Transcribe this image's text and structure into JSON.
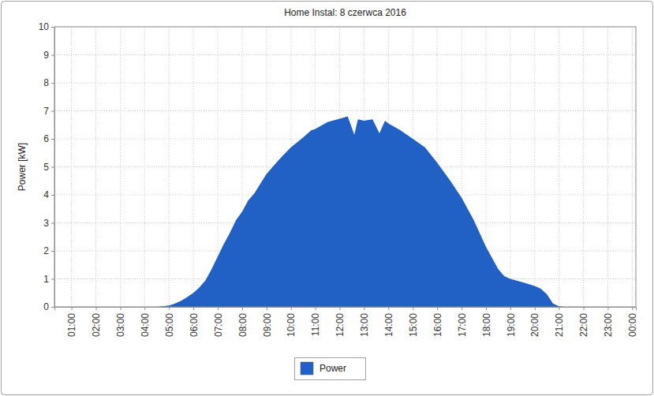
{
  "chart_data": {
    "type": "area",
    "title": "Home Instal: 8 czerwca 2016",
    "y_label": "Power [kW]",
    "x": [
      0.3,
      4.5,
      4.75,
      5.0,
      5.25,
      5.5,
      5.75,
      6.0,
      6.25,
      6.5,
      6.75,
      7.0,
      7.25,
      7.5,
      7.75,
      8.0,
      8.25,
      8.5,
      8.75,
      9.0,
      9.5,
      10.0,
      10.5,
      10.83,
      11.0,
      11.5,
      12.0,
      12.33,
      12.6,
      12.75,
      13.0,
      13.35,
      13.63,
      13.86,
      14.0,
      14.5,
      15.0,
      15.5,
      16.0,
      16.5,
      17.0,
      17.5,
      18.0,
      18.5,
      18.75,
      19.0,
      19.5,
      20.0,
      20.25,
      20.5,
      20.75,
      21.0,
      21.25,
      24.15
    ],
    "series": [
      {
        "name": "Power",
        "color": "#2160c4",
        "values": [
          0,
          0,
          0.02,
          0.05,
          0.12,
          0.22,
          0.35,
          0.5,
          0.7,
          0.95,
          1.35,
          1.8,
          2.25,
          2.65,
          3.1,
          3.4,
          3.8,
          4.05,
          4.4,
          4.75,
          5.25,
          5.7,
          6.05,
          6.3,
          6.35,
          6.6,
          6.72,
          6.8,
          6.15,
          6.7,
          6.65,
          6.7,
          6.2,
          6.65,
          6.55,
          6.3,
          6.0,
          5.7,
          5.15,
          4.55,
          3.9,
          3.1,
          2.15,
          1.35,
          1.1,
          1.0,
          0.88,
          0.75,
          0.65,
          0.45,
          0.12,
          0.02,
          0,
          0
        ]
      }
    ],
    "xlim": [
      0.3,
      24.15
    ],
    "xticks": [
      {
        "value": 1,
        "label": "01:00"
      },
      {
        "value": 2,
        "label": "02:00"
      },
      {
        "value": 3,
        "label": "03:00"
      },
      {
        "value": 4,
        "label": "04:00"
      },
      {
        "value": 5,
        "label": "05:00"
      },
      {
        "value": 6,
        "label": "06:00"
      },
      {
        "value": 7,
        "label": "07:00"
      },
      {
        "value": 8,
        "label": "08:00"
      },
      {
        "value": 9,
        "label": "09:00"
      },
      {
        "value": 10,
        "label": "10:00"
      },
      {
        "value": 11,
        "label": "11:00"
      },
      {
        "value": 12,
        "label": "12:00"
      },
      {
        "value": 13,
        "label": "13:00"
      },
      {
        "value": 14,
        "label": "14:00"
      },
      {
        "value": 15,
        "label": "15:00"
      },
      {
        "value": 16,
        "label": "16:00"
      },
      {
        "value": 17,
        "label": "17:00"
      },
      {
        "value": 18,
        "label": "18:00"
      },
      {
        "value": 19,
        "label": "19:00"
      },
      {
        "value": 20,
        "label": "20:00"
      },
      {
        "value": 21,
        "label": "21:00"
      },
      {
        "value": 22,
        "label": "22:00"
      },
      {
        "value": 23,
        "label": "23:00"
      },
      {
        "value": 24,
        "label": "00:00"
      }
    ],
    "ylim": [
      0,
      10
    ],
    "yticks": [
      0,
      1,
      2,
      3,
      4,
      5,
      6,
      7,
      8,
      9,
      10
    ],
    "grid": true,
    "legend": "bottom"
  }
}
